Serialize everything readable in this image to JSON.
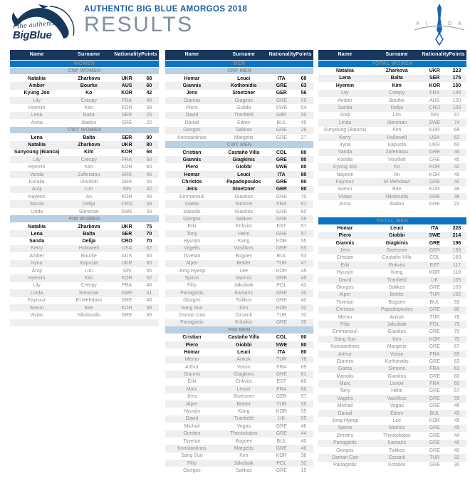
{
  "header": {
    "event_title": "AUTHENTIC BIG BLUE AMORGOS 2018",
    "page_title": "RESULTS",
    "logo_script": "the authentic",
    "logo_brand": "BigBlue",
    "aida_letters": [
      "A",
      "I",
      "D",
      "A"
    ]
  },
  "colors": {
    "header_navy": "#17375D",
    "section_blue": "#0B74C4",
    "subheader_blue": "#B9CFE2",
    "alt_row_gray": "#EFEFEF",
    "title_blue": "#1A5CA8",
    "results_text_gray": "#7C8FA3",
    "row_text_gray": "#8E8E8E"
  },
  "column_headers": [
    "Name",
    "Surname",
    "Nationality",
    "Points"
  ],
  "row_format": [
    "name",
    "surname",
    "nationality",
    "points",
    "bold_top_rank"
  ],
  "tables": [
    {
      "sections": [
        {
          "label": "WOMEN",
          "style": "main",
          "rows": []
        },
        {
          "label": "CNF WOMEN",
          "style": "sub",
          "rows": [
            [
              "Nataliia",
              "Zharkova",
              "UKR",
              68,
              1
            ],
            [
              "Amber",
              "Bourke",
              "AUS",
              60,
              1
            ],
            [
              "Kyung Joo",
              "Ko",
              "KOR",
              42,
              1
            ],
            [
              "Lily",
              "Crespy",
              "FRA",
              40,
              0
            ],
            [
              "Hyemin",
              "Kim",
              "KOR",
              38,
              0
            ],
            [
              "Lena",
              "Balta",
              "SER",
              25,
              0
            ],
            [
              "Anna",
              "Iliadou",
              "GRE",
              22,
              0
            ]
          ]
        },
        {
          "label": "CWT WOMEN",
          "style": "sub",
          "rows": [
            [
              "Lena",
              "Balta",
              "SER",
              80,
              1
            ],
            [
              "Nataliia",
              "Zharkova",
              "UKR",
              80,
              1
            ],
            [
              "Sunyoung (Bianca)",
              "Kim",
              "KOR",
              68,
              1
            ],
            [
              "Lily",
              "Crespy",
              "FRA",
              60,
              0
            ],
            [
              "Hyemin",
              "Kim",
              "KOR",
              60,
              0
            ],
            [
              "Vanda",
              "Zafeiratou",
              "GRE",
              46,
              0
            ],
            [
              "Koralia",
              "Vourlioti",
              "GRE",
              45,
              0
            ],
            [
              "Anqi",
              "Lim",
              "SIN",
              42,
              0
            ],
            [
              "Nayeon",
              "An",
              "KOR",
              40,
              0
            ],
            [
              "Sanda",
              "Delija",
              "CRO",
              33,
              0
            ],
            [
              "Linda",
              "Stenman",
              "SWE",
              33,
              0
            ]
          ]
        },
        {
          "label": "FIM WOMEN",
          "style": "sub",
          "rows": [
            [
              "Nataliia",
              "Zharkova",
              "UKR",
              75,
              1
            ],
            [
              "Lena",
              "Balta",
              "SER",
              70,
              1
            ],
            [
              "Sanda",
              "Delija",
              "CRO",
              70,
              1
            ],
            [
              "Kerry",
              "Hollowell",
              "USA",
              62,
              0
            ],
            [
              "Amber",
              "Bourke",
              "AUS",
              60,
              0
            ],
            [
              "Iryna",
              "Kapusta",
              "UKR",
              60,
              0
            ],
            [
              "Anqi",
              "Lim",
              "SIN",
              55,
              0
            ],
            [
              "Hyemin",
              "Kim",
              "KOR",
              52,
              0
            ],
            [
              "Lily",
              "Crespy",
              "FRA",
              46,
              0
            ],
            [
              "Linda",
              "Stenman",
              "SWE",
              41,
              0
            ],
            [
              "Fayrouz",
              "El Mehdawi",
              "GRE",
              40,
              0
            ],
            [
              "Soeun",
              "Bae",
              "KOR",
              38,
              0
            ],
            [
              "Vivian",
              "Nikoloudis",
              "GRE",
              36,
              0
            ],
            [
              "",
              "",
              "",
              null,
              0
            ]
          ]
        }
      ]
    },
    {
      "sections": [
        {
          "label": "MEN",
          "style": "main",
          "rows": []
        },
        {
          "label": "CNF MEN",
          "style": "sub",
          "rows": [
            [
              "Homar",
              "Leuci",
              "ITA",
              68,
              1
            ],
            [
              "Giannis",
              "Kothonidis",
              "GRE",
              63,
              1
            ],
            [
              "Jens",
              "Stoetzner",
              "GER",
              56,
              1
            ],
            [
              "Giannis",
              "Giaginis",
              "GRE",
              55,
              0
            ],
            [
              "Piero",
              "Giobbi",
              "SWE",
              54,
              0
            ],
            [
              "David",
              "Tranfield",
              "GBR",
              50,
              0
            ],
            [
              "Danail",
              "Edrev",
              "BUL",
              45,
              0
            ],
            [
              "Giorgos",
              "Sakkas",
              "GRE",
              29,
              0
            ],
            [
              "Konstantinos",
              "Margetis",
              "GRE",
              27,
              0
            ]
          ]
        },
        {
          "label": "CWT MEN",
          "style": "sub",
          "rows": [
            [
              "Cristian",
              "Castaño Villa",
              "COL",
              80,
              1
            ],
            [
              "Giannis",
              "Giagkinis",
              "GRE",
              80,
              1
            ],
            [
              "Piero",
              "Giobbi",
              "SWE",
              80,
              1
            ],
            [
              "Homar",
              "Leuci",
              "ITA",
              80,
              1
            ],
            [
              "Christos",
              "Papadopoulos",
              "GRE",
              80,
              1
            ],
            [
              "Jens",
              "Stoetzner",
              "GER",
              80,
              1
            ],
            [
              "Emmanouil",
              "Giankos",
              "GRE",
              70,
              0
            ],
            [
              "Gaeta",
              "Simone",
              "FRA",
              61,
              0
            ],
            [
              "Manolis",
              "Giankos",
              "GRE",
              60,
              0
            ],
            [
              "Giorgos",
              "Sakkas",
              "GRE",
              59,
              0
            ],
            [
              "Erki",
              "Enkvist",
              "EST",
              57,
              0
            ],
            [
              "Tony",
              "Helm",
              "GRE",
              57,
              0
            ],
            [
              "Hyunjin",
              "Kang",
              "KOR",
              55,
              0
            ],
            [
              "Vagelis",
              "Vasilikos",
              "GRE",
              55,
              0
            ],
            [
              "Tsvetan",
              "Bogoev",
              "BUL",
              53,
              0
            ],
            [
              "Alper",
              "Bekler",
              "TUR",
              47,
              0
            ],
            [
              "Jong Hyeop",
              "Lee",
              "KOR",
              45,
              0
            ],
            [
              "Spiros",
              "Marinis",
              "GRE",
              45,
              0
            ],
            [
              "Filip",
              "Jakubiak",
              "POL",
              43,
              0
            ],
            [
              "Panagiotis",
              "Kamaris",
              "GRE",
              40,
              0
            ],
            [
              "Giorgos",
              "Tsilikos",
              "GRE",
              40,
              0
            ],
            [
              "Sang Sun",
              "Kim",
              "KOR",
              32,
              0
            ],
            [
              "Osman Can",
              "Ozcanlı",
              "TUR",
              32,
              0
            ],
            [
              "Panagiotis",
              "Kritsikis",
              "GRE",
              30,
              0
            ]
          ]
        },
        {
          "label": "FIM MEN",
          "style": "sub",
          "rows": [
            [
              "Cristian",
              "Castaño Villa",
              "COL",
              80,
              1
            ],
            [
              "Piero",
              "Giobbi",
              "SWE",
              80,
              1
            ],
            [
              "Homar",
              "Leuci",
              "ITA",
              80,
              1
            ],
            [
              "Memo",
              "Arıkok",
              "TUR",
              78,
              0
            ],
            [
              "Arthur",
              "Voisin",
              "FRA",
              65,
              0
            ],
            [
              "Giannis",
              "Giagkinis",
              "GRE",
              61,
              0
            ],
            [
              "Erki",
              "Enkvist",
              "EST",
              60,
              0
            ],
            [
              "Marc",
              "Lenoir",
              "FRA",
              60,
              0
            ],
            [
              "Jens",
              "Stoetzner",
              "GER",
              57,
              0
            ],
            [
              "Alper",
              "Bekler",
              "TUR",
              55,
              0
            ],
            [
              "Hyunjin",
              "Kang",
              "KOR",
              55,
              0
            ],
            [
              "David",
              "Tranfield",
              "UK",
              55,
              0
            ],
            [
              "Michail",
              "Vogas",
              "GRE",
              46,
              0
            ],
            [
              "Dimitris",
              "Theotokatos",
              "GRE",
              44,
              0
            ],
            [
              "Tsvetan",
              "Bogoev",
              "BUL",
              40,
              0
            ],
            [
              "Konstantinos",
              "Margetis",
              "GRE",
              40,
              0
            ],
            [
              "Sang Sun",
              "Kim",
              "KOR",
              38,
              0
            ],
            [
              "Filip",
              "Jakubiak",
              "POL",
              32,
              0
            ],
            [
              "Giorgos",
              "Sakkas",
              "GRE",
              15,
              0
            ]
          ]
        }
      ]
    },
    {
      "sections": [
        {
          "label": "TOTAL WOMEN",
          "style": "main",
          "rows": [
            [
              "Nataliia",
              "Zharkova",
              "UKR",
              223,
              1
            ],
            [
              "Lena",
              "Balta",
              "SER",
              175,
              1
            ],
            [
              "Hyemin",
              "Kim",
              "KOR",
              150,
              1
            ],
            [
              "Lily",
              "Crespy",
              "FRA",
              146,
              0
            ],
            [
              "Amber",
              "Bourke",
              "AUS",
              120,
              0
            ],
            [
              "Sanda",
              "Delija",
              "CRO",
              103,
              0
            ],
            [
              "Anqi",
              "Lim",
              "SIN",
              97,
              0
            ],
            [
              "Linda",
              "Stenman",
              "SWE",
              74,
              0
            ],
            [
              "Sunyoung (Bianca)",
              "Kim",
              "KOR",
              68,
              0
            ],
            [
              "Kerry",
              "Hollowell",
              "USA",
              62,
              0
            ],
            [
              "Iryna",
              "Kapusta",
              "UKR",
              60,
              0
            ],
            [
              "Vanda",
              "Zafeiratou",
              "GRE",
              46,
              0
            ],
            [
              "Koralia",
              "Vourlioti",
              "GRE",
              45,
              0
            ],
            [
              "Kyung Joo",
              "Ko",
              "KOR",
              42,
              0
            ],
            [
              "Nayeon",
              "An",
              "KOR",
              40,
              0
            ],
            [
              "Fayrouz",
              "El Mehdawi",
              "GRE",
              40,
              0
            ],
            [
              "Soeun",
              "Bae",
              "KOR",
              38,
              0
            ],
            [
              "Vivian",
              "Nikoloudis",
              "GRE",
              36,
              0
            ],
            [
              "Anna",
              "Iliadou",
              "GRE",
              22,
              0
            ]
          ]
        },
        {
          "label": "TOTAL MEN",
          "style": "main",
          "gap_before": true,
          "rows": [
            [
              "Homar",
              "Leuci",
              "ITA",
              228,
              1
            ],
            [
              "Piero",
              "Giobbi",
              "SWE",
              214,
              1
            ],
            [
              "Giannis",
              "Giagkinis",
              "GRE",
              196,
              1
            ],
            [
              "Jens",
              "Stoetzner",
              "GER",
              193,
              0
            ],
            [
              "Cristian",
              "Castaño Villa",
              "COL",
              160,
              0
            ],
            [
              "Erki",
              "Enkvist",
              "EST",
              117,
              0
            ],
            [
              "Hyunjin",
              "Kang",
              "KOR",
              110,
              0
            ],
            [
              "David",
              "Tranfield",
              "UK",
              105,
              0
            ],
            [
              "Giorgos",
              "Sakkas",
              "GRE",
              103,
              0
            ],
            [
              "Alper",
              "Bekler",
              "TUR",
              102,
              0
            ],
            [
              "Tsvetan",
              "Bogoev",
              "BUL",
              93,
              0
            ],
            [
              "Christos",
              "Papadopoulos",
              "GRE",
              80,
              0
            ],
            [
              "Memo",
              "Arıkok",
              "TUR",
              78,
              0
            ],
            [
              "Filip",
              "Jakubiak",
              "POL",
              75,
              0
            ],
            [
              "Emmanouil",
              "Giankos",
              "GRE",
              70,
              0
            ],
            [
              "Sang Sun",
              "Kim",
              "KOR",
              70,
              0
            ],
            [
              "Konstantinos",
              "Margetis",
              "GRE",
              67,
              0
            ],
            [
              "Arthur",
              "Voisin",
              "FRA",
              65,
              0
            ],
            [
              "Giannis",
              "Kothonidis",
              "GRE",
              63,
              0
            ],
            [
              "Gaeta",
              "Simone",
              "FRA",
              61,
              0
            ],
            [
              "Manolis",
              "Giankos",
              "GRE",
              60,
              0
            ],
            [
              "Marc",
              "Lenoir",
              "FRA",
              60,
              0
            ],
            [
              "Tony",
              "Helm",
              "GRE",
              57,
              0
            ],
            [
              "Vagelis",
              "Vasilikos",
              "GRE",
              55,
              0
            ],
            [
              "Michail",
              "Vogas",
              "GRE",
              46,
              0
            ],
            [
              "Danail",
              "Edrev",
              "BUL",
              45,
              0
            ],
            [
              "Jong Hyeop",
              "Lee",
              "KOR",
              45,
              0
            ],
            [
              "Spiros",
              "Marinis",
              "GRE",
              45,
              0
            ],
            [
              "Dimitris",
              "Theotokatos",
              "GRE",
              44,
              0
            ],
            [
              "Panagiotis",
              "Kamaris",
              "GRE",
              40,
              0
            ],
            [
              "Giorgos",
              "Tsilikos",
              "GRE",
              40,
              0
            ],
            [
              "Osman Can",
              "Ozcanli",
              "TUR",
              32,
              0
            ],
            [
              "Panagiotis",
              "Kritsikis",
              "GRE",
              30,
              0
            ]
          ]
        }
      ]
    }
  ]
}
